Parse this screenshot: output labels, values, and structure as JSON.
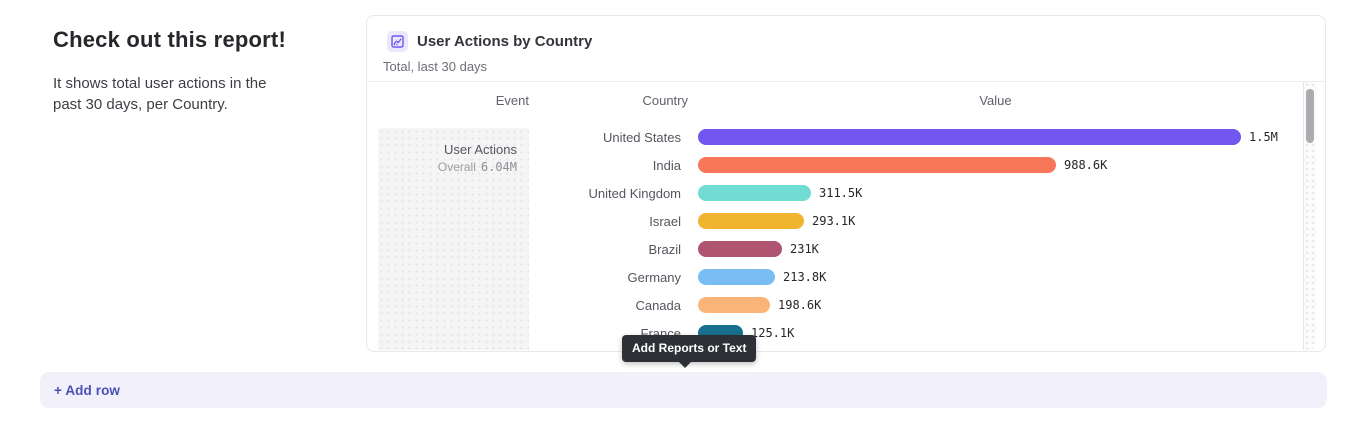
{
  "page": {
    "heading": "Check out this report!",
    "description": "It shows total user actions in the past 30 days, per Country."
  },
  "card": {
    "title": "User Actions by Country",
    "subtitle": "Total, last 30 days",
    "columns": {
      "event": "Event",
      "country": "Country",
      "value": "Value"
    },
    "event_cell": {
      "name": "User Actions",
      "overall_label": "Overall",
      "overall_value": "6.04M"
    }
  },
  "chart_data": {
    "type": "bar",
    "orientation": "horizontal",
    "title": "User Actions by Country",
    "subtitle": "Total, last 30 days",
    "event": "User Actions",
    "overall_total": "6.04M",
    "categories": [
      "United States",
      "India",
      "United Kingdom",
      "Israel",
      "Brazil",
      "Germany",
      "Canada",
      "France"
    ],
    "values": [
      1500000,
      988600,
      311500,
      293100,
      231000,
      213800,
      198600,
      125100
    ],
    "value_labels": [
      "1.5M",
      "988.6K",
      "311.5K",
      "293.1K",
      "231K",
      "213.8K",
      "198.6K",
      "125.1K"
    ],
    "colors": [
      "#7156ef",
      "#f8775a",
      "#71dcd3",
      "#f0b42f",
      "#af5571",
      "#78bef2",
      "#fbb477",
      "#17708f"
    ],
    "xlim": [
      0,
      1500000
    ],
    "legend": false,
    "grid": false
  },
  "tooltip": {
    "label": "Add Reports or Text"
  },
  "footer": {
    "add_row_label": "+ Add row"
  },
  "colors": {
    "accent": "#7156ef",
    "add_row_text": "#4c50b5",
    "add_row_bg": "#f2f1fb",
    "tooltip_bg": "#2d3136",
    "card_border": "#e8e8ec"
  }
}
